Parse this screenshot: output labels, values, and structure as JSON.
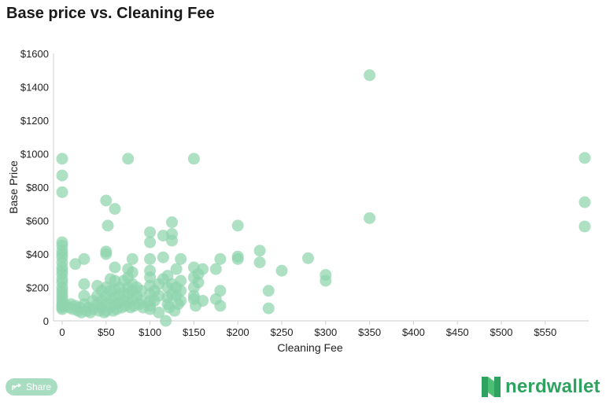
{
  "page": {
    "title": "Base price vs. Cleaning Fee",
    "share_label": "Share",
    "brand": "nerdwallet"
  },
  "colors": {
    "point": "#8fd4ad",
    "point_dark": "#6fbf8f",
    "axis": "#cfcfcf",
    "brand": "#2ea35f"
  },
  "icons": {
    "share": "share-icon",
    "logo": "nerdwallet-logo-icon"
  },
  "chart_data": {
    "type": "scatter",
    "title": "Base price vs. Cleaning Fee",
    "xlabel": "Cleaning Fee",
    "ylabel": "Base Price",
    "xlim": [
      -5,
      600
    ],
    "ylim": [
      0,
      1600
    ],
    "x_ticks": [
      0,
      50,
      100,
      150,
      200,
      250,
      300,
      350,
      400,
      450,
      500,
      550
    ],
    "x_tick_labels": [
      "0",
      "$50",
      "$100",
      "$150",
      "$200",
      "$250",
      "$300",
      "$350",
      "$400",
      "$450",
      "$500",
      "$550"
    ],
    "y_ticks": [
      0,
      200,
      400,
      600,
      800,
      1000,
      1200,
      1400,
      1600
    ],
    "y_tick_labels": [
      "0",
      "$200",
      "$400",
      "$600",
      "$800",
      "$1000",
      "$1200",
      "$1400",
      "$1600"
    ],
    "grid": false,
    "points": [
      [
        0,
        970
      ],
      [
        0,
        870
      ],
      [
        0,
        770
      ],
      [
        0,
        470
      ],
      [
        0,
        450
      ],
      [
        0,
        420
      ],
      [
        0,
        400
      ],
      [
        0,
        380
      ],
      [
        0,
        350
      ],
      [
        0,
        320
      ],
      [
        0,
        300
      ],
      [
        0,
        280
      ],
      [
        0,
        250
      ],
      [
        0,
        230
      ],
      [
        0,
        200
      ],
      [
        0,
        180
      ],
      [
        0,
        160
      ],
      [
        0,
        140
      ],
      [
        0,
        120
      ],
      [
        0,
        100
      ],
      [
        0,
        90
      ],
      [
        0,
        80
      ],
      [
        0,
        70
      ],
      [
        5,
        90
      ],
      [
        8,
        80
      ],
      [
        10,
        100
      ],
      [
        12,
        70
      ],
      [
        15,
        340
      ],
      [
        15,
        90
      ],
      [
        18,
        60
      ],
      [
        20,
        80
      ],
      [
        22,
        50
      ],
      [
        25,
        370
      ],
      [
        25,
        220
      ],
      [
        25,
        150
      ],
      [
        25,
        100
      ],
      [
        28,
        60
      ],
      [
        30,
        80
      ],
      [
        32,
        50
      ],
      [
        35,
        120
      ],
      [
        35,
        70
      ],
      [
        40,
        210
      ],
      [
        40,
        150
      ],
      [
        40,
        100
      ],
      [
        42,
        60
      ],
      [
        45,
        180
      ],
      [
        45,
        120
      ],
      [
        45,
        80
      ],
      [
        48,
        50
      ],
      [
        50,
        720
      ],
      [
        50,
        415
      ],
      [
        50,
        400
      ],
      [
        50,
        200
      ],
      [
        50,
        150
      ],
      [
        50,
        100
      ],
      [
        50,
        60
      ],
      [
        52,
        570
      ],
      [
        55,
        250
      ],
      [
        55,
        180
      ],
      [
        55,
        130
      ],
      [
        55,
        80
      ],
      [
        58,
        60
      ],
      [
        60,
        670
      ],
      [
        60,
        320
      ],
      [
        60,
        240
      ],
      [
        60,
        190
      ],
      [
        60,
        140
      ],
      [
        60,
        100
      ],
      [
        62,
        70
      ],
      [
        65,
        200
      ],
      [
        65,
        150
      ],
      [
        65,
        110
      ],
      [
        68,
        80
      ],
      [
        70,
        240
      ],
      [
        70,
        170
      ],
      [
        70,
        120
      ],
      [
        72,
        90
      ],
      [
        75,
        970
      ],
      [
        75,
        310
      ],
      [
        75,
        260
      ],
      [
        75,
        200
      ],
      [
        75,
        160
      ],
      [
        75,
        110
      ],
      [
        78,
        80
      ],
      [
        80,
        370
      ],
      [
        80,
        290
      ],
      [
        80,
        220
      ],
      [
        80,
        180
      ],
      [
        80,
        130
      ],
      [
        82,
        90
      ],
      [
        85,
        200
      ],
      [
        85,
        150
      ],
      [
        88,
        100
      ],
      [
        90,
        180
      ],
      [
        90,
        120
      ],
      [
        92,
        80
      ],
      [
        100,
        530
      ],
      [
        100,
        470
      ],
      [
        100,
        370
      ],
      [
        100,
        300
      ],
      [
        100,
        260
      ],
      [
        100,
        210
      ],
      [
        100,
        160
      ],
      [
        100,
        120
      ],
      [
        100,
        90
      ],
      [
        100,
        70
      ],
      [
        105,
        180
      ],
      [
        105,
        120
      ],
      [
        110,
        50
      ],
      [
        110,
        220
      ],
      [
        110,
        150
      ],
      [
        115,
        510
      ],
      [
        115,
        380
      ],
      [
        115,
        250
      ],
      [
        118,
        0
      ],
      [
        120,
        270
      ],
      [
        120,
        200
      ],
      [
        120,
        140
      ],
      [
        120,
        100
      ],
      [
        122,
        80
      ],
      [
        125,
        590
      ],
      [
        125,
        520
      ],
      [
        125,
        480
      ],
      [
        125,
        220
      ],
      [
        125,
        160
      ],
      [
        128,
        60
      ],
      [
        130,
        310
      ],
      [
        130,
        200
      ],
      [
        130,
        150
      ],
      [
        132,
        100
      ],
      [
        135,
        370
      ],
      [
        135,
        240
      ],
      [
        135,
        180
      ],
      [
        135,
        120
      ],
      [
        150,
        970
      ],
      [
        150,
        320
      ],
      [
        150,
        260
      ],
      [
        150,
        200
      ],
      [
        150,
        150
      ],
      [
        150,
        130
      ],
      [
        152,
        90
      ],
      [
        155,
        280
      ],
      [
        155,
        230
      ],
      [
        160,
        310
      ],
      [
        160,
        120
      ],
      [
        175,
        310
      ],
      [
        175,
        130
      ],
      [
        180,
        370
      ],
      [
        180,
        180
      ],
      [
        180,
        90
      ],
      [
        200,
        570
      ],
      [
        200,
        385
      ],
      [
        200,
        370
      ],
      [
        225,
        420
      ],
      [
        225,
        350
      ],
      [
        235,
        180
      ],
      [
        235,
        75
      ],
      [
        250,
        300
      ],
      [
        280,
        375
      ],
      [
        300,
        275
      ],
      [
        300,
        240
      ],
      [
        350,
        1470
      ],
      [
        350,
        615
      ],
      [
        595,
        975
      ],
      [
        595,
        710
      ],
      [
        595,
        565
      ]
    ]
  }
}
